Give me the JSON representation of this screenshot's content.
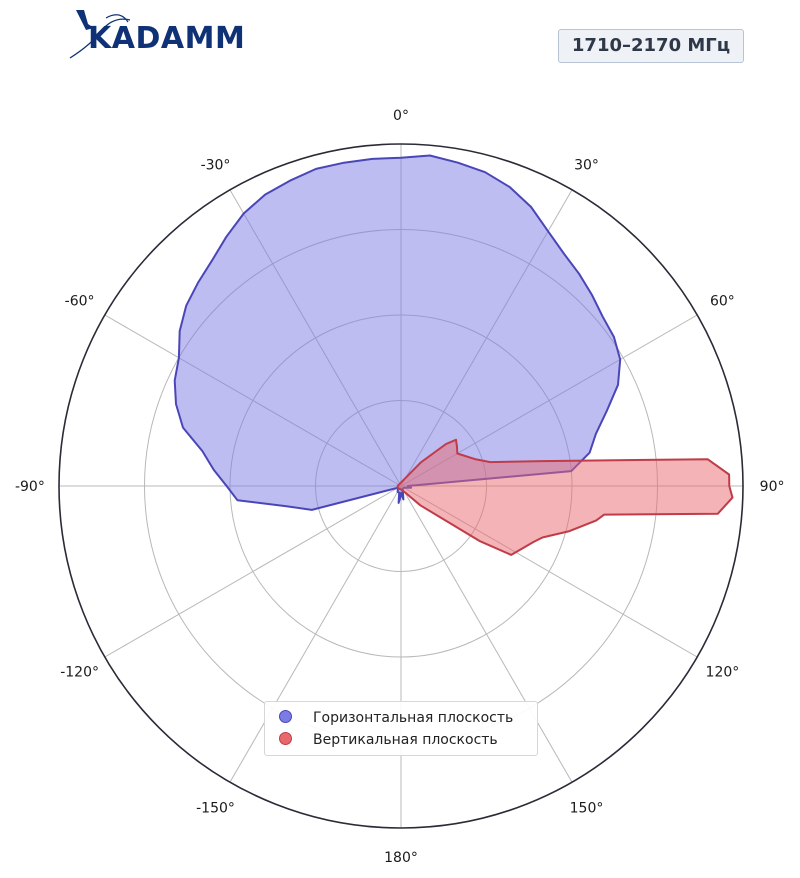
{
  "header": {
    "brand": "KADAMM",
    "badge": "1710–2170 МГц"
  },
  "chart_data": {
    "type": "polar-area",
    "theta_zero": "top",
    "theta_direction": "clockwise",
    "theta_tick_labels": [
      "0°",
      "30°",
      "60°",
      "90°",
      "120°",
      "150°",
      "180°",
      "-150°",
      "-120°",
      "-90°",
      "-60°",
      "-30°"
    ],
    "r_range": [
      0,
      1
    ],
    "r_grid": [
      0.25,
      0.5,
      0.75,
      1.0
    ],
    "grid": true,
    "legend_position": "bottom-center",
    "series": [
      {
        "name": "Горизонтальная плоскость",
        "color": "#7b7be6",
        "edge_color": "#4b46b8",
        "points": [
          [
            -120,
            0.01
          ],
          [
            -105,
            0.27
          ],
          [
            -100,
            0.34
          ],
          [
            -95,
            0.48
          ],
          [
            -90,
            0.51
          ],
          [
            -85,
            0.55
          ],
          [
            -80,
            0.59
          ],
          [
            -75,
            0.66
          ],
          [
            -70,
            0.7
          ],
          [
            -65,
            0.73
          ],
          [
            -60,
            0.75
          ],
          [
            -55,
            0.79
          ],
          [
            -50,
            0.82
          ],
          [
            -45,
            0.84
          ],
          [
            -40,
            0.86
          ],
          [
            -35,
            0.89
          ],
          [
            -30,
            0.92
          ],
          [
            -25,
            0.94
          ],
          [
            -20,
            0.95
          ],
          [
            -15,
            0.96
          ],
          [
            -10,
            0.96
          ],
          [
            -5,
            0.96
          ],
          [
            0,
            0.96
          ],
          [
            5,
            0.97
          ],
          [
            10,
            0.96
          ],
          [
            15,
            0.95
          ],
          [
            20,
            0.93
          ],
          [
            25,
            0.9
          ],
          [
            30,
            0.86
          ],
          [
            35,
            0.83
          ],
          [
            40,
            0.81
          ],
          [
            45,
            0.79
          ],
          [
            50,
            0.77
          ],
          [
            55,
            0.76
          ],
          [
            60,
            0.74
          ],
          [
            65,
            0.7
          ],
          [
            70,
            0.64
          ],
          [
            75,
            0.59
          ],
          [
            80,
            0.56
          ],
          [
            85,
            0.5
          ],
          [
            90,
            0.02
          ],
          [
            100,
            0.03
          ],
          [
            120,
            0.01
          ],
          [
            150,
            0.01
          ],
          [
            170,
            0.04
          ],
          [
            178,
            0.02
          ],
          [
            -178,
            0.03
          ],
          [
            -172,
            0.05
          ],
          [
            -165,
            0.02
          ],
          [
            -150,
            0.02
          ]
        ]
      },
      {
        "name": "Вертикальная плоскость",
        "color": "#e9686e",
        "edge_color": "#bf3c48",
        "points": [
          [
            -90,
            0.01
          ],
          [
            0,
            0.01
          ],
          [
            40,
            0.09
          ],
          [
            47,
            0.18
          ],
          [
            50,
            0.21
          ],
          [
            55,
            0.2
          ],
          [
            60,
            0.19
          ],
          [
            70,
            0.23
          ],
          [
            75,
            0.27
          ],
          [
            80,
            0.42
          ],
          [
            85,
            0.9
          ],
          [
            88,
            0.96
          ],
          [
            90,
            0.96
          ],
          [
            92,
            0.97
          ],
          [
            95,
            0.93
          ],
          [
            98,
            0.6
          ],
          [
            100,
            0.58
          ],
          [
            105,
            0.51
          ],
          [
            110,
            0.44
          ],
          [
            113,
            0.42
          ],
          [
            117,
            0.4
          ],
          [
            122,
            0.38
          ],
          [
            125,
            0.28
          ],
          [
            135,
            0.08
          ],
          [
            150,
            0.02
          ],
          [
            180,
            0.01
          ],
          [
            -150,
            0.01
          ],
          [
            -120,
            0.01
          ]
        ]
      }
    ]
  }
}
